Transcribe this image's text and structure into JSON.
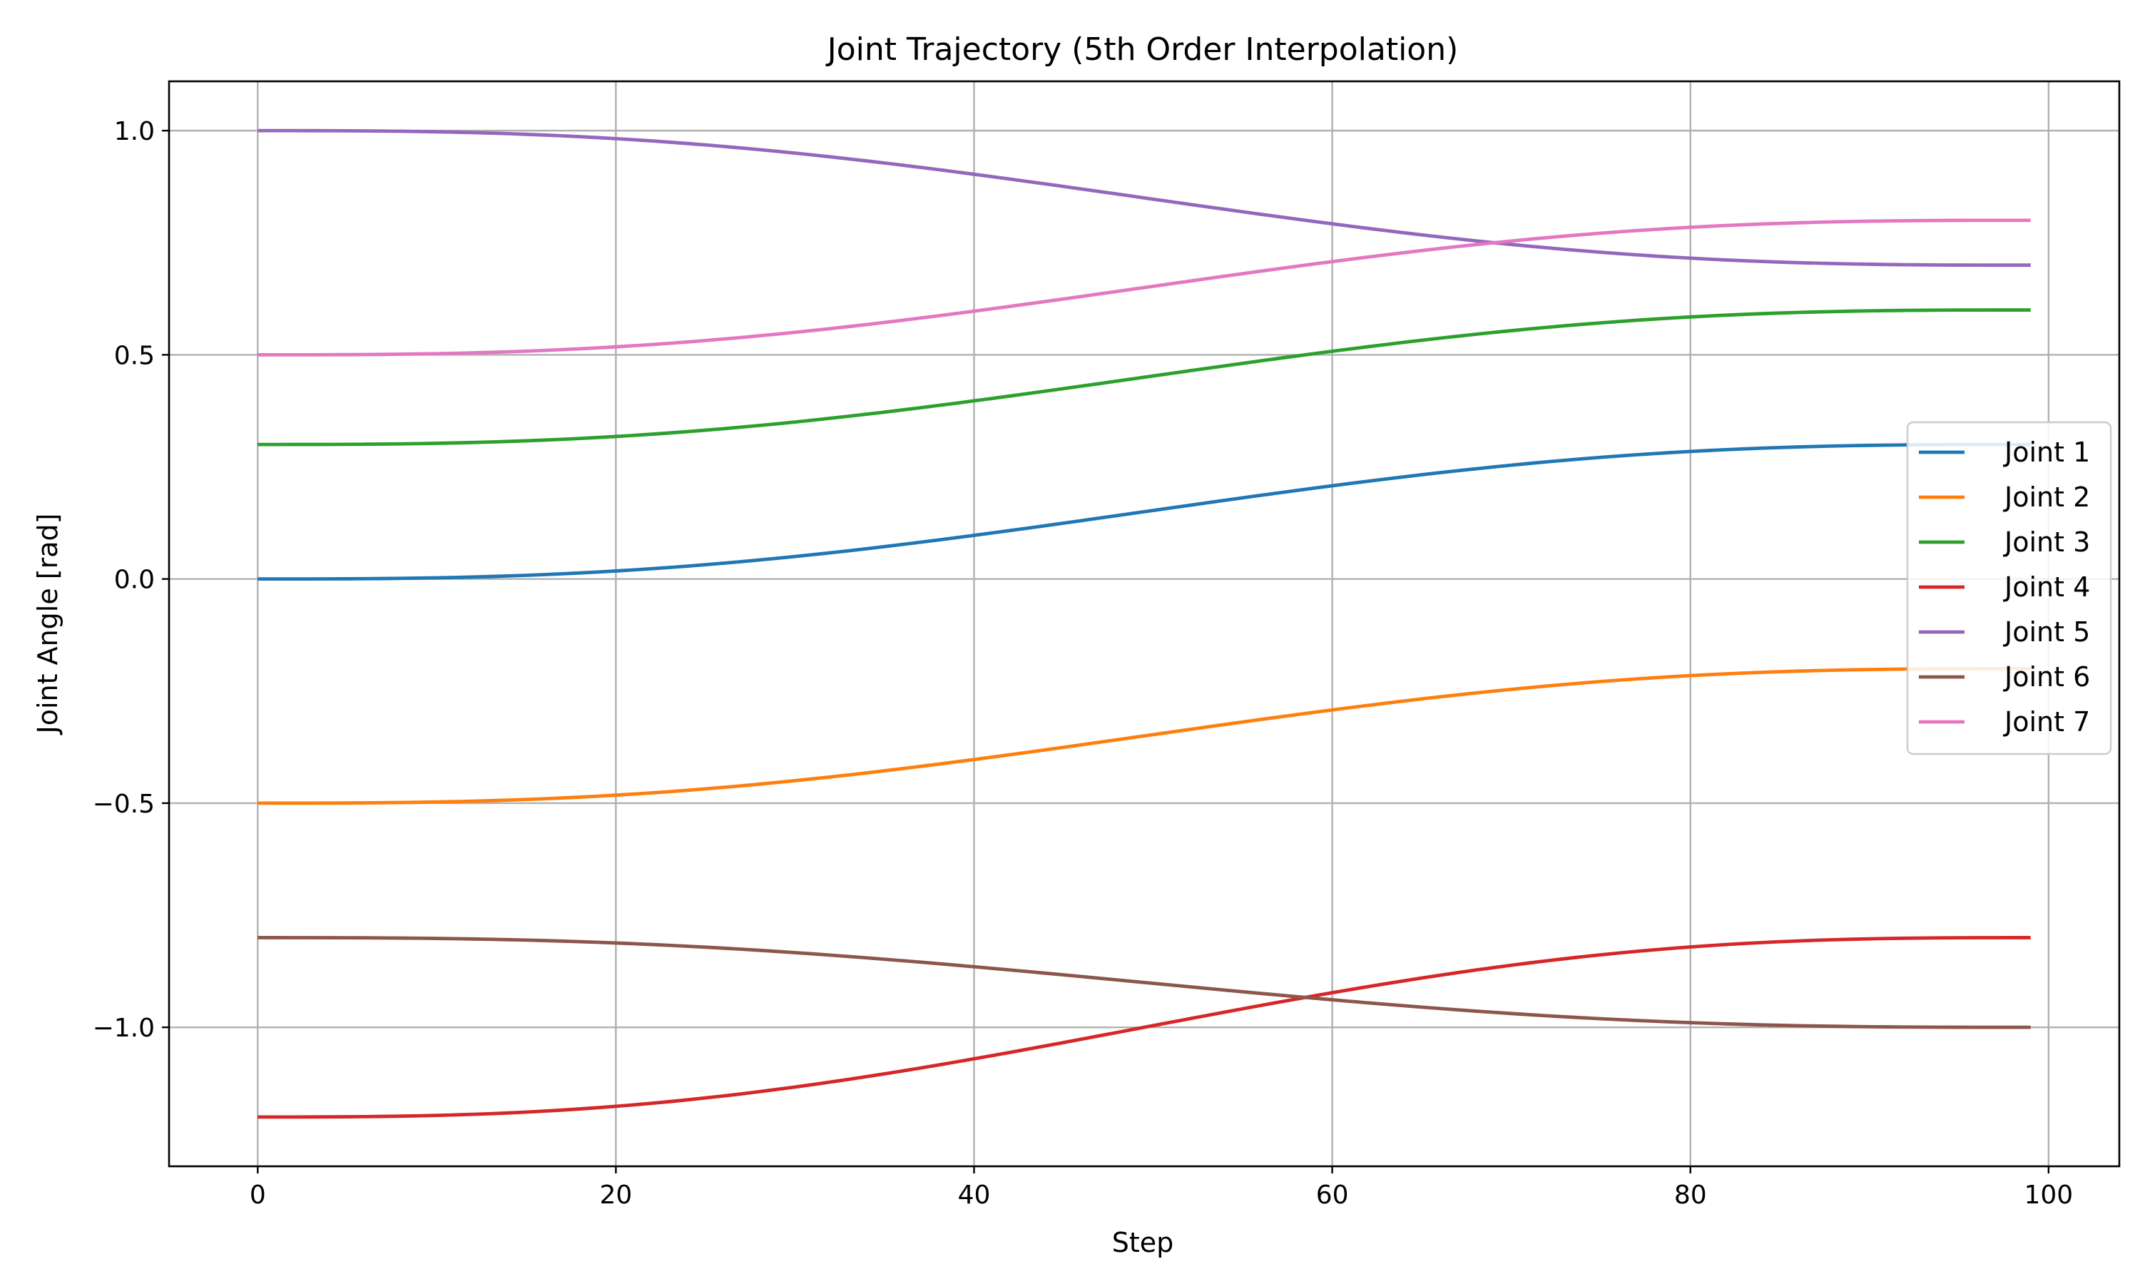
{
  "chart_data": {
    "type": "line",
    "title": "Joint Trajectory (5th Order Interpolation)",
    "xlabel": "Step",
    "ylabel": "Joint Angle [rad]",
    "xlim": [
      -4.95,
      103.95
    ],
    "ylim": [
      -1.31,
      1.11
    ],
    "x_ticks": [
      0,
      20,
      40,
      60,
      80,
      100
    ],
    "y_ticks": [
      -1.0,
      -0.5,
      0.0,
      0.5,
      1.0
    ],
    "y_tick_labels": [
      "−1.0",
      "−0.5",
      "0.0",
      "0.5",
      "1.0"
    ],
    "x_tick_labels": [
      "0",
      "20",
      "40",
      "60",
      "80",
      "100"
    ],
    "grid": true,
    "legend_position": "center-right",
    "interpolation": "quintic",
    "steps": 100,
    "series": [
      {
        "name": "Joint 1",
        "color": "#1f77b4",
        "start": 0.0,
        "end": 0.3
      },
      {
        "name": "Joint 2",
        "color": "#ff7f0e",
        "start": -0.5,
        "end": -0.2
      },
      {
        "name": "Joint 3",
        "color": "#2ca02c",
        "start": 0.3,
        "end": 0.6
      },
      {
        "name": "Joint 4",
        "color": "#d62728",
        "start": -1.2,
        "end": -0.8
      },
      {
        "name": "Joint 5",
        "color": "#9467bd",
        "start": 1.0,
        "end": 0.7
      },
      {
        "name": "Joint 6",
        "color": "#8c564b",
        "start": -0.8,
        "end": -1.0
      },
      {
        "name": "Joint 7",
        "color": "#e377c2",
        "start": 0.5,
        "end": 0.8
      }
    ]
  }
}
